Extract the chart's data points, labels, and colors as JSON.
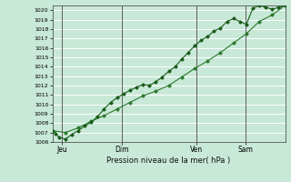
{
  "bg_color": "#c8e8d8",
  "plot_bg_color": "#c8e8d8",
  "grid_color": "#ffffff",
  "line_color1": "#1a5c1a",
  "line_color2": "#2d7a2d",
  "xlabel_text": "Pression niveau de la mer( hPa )",
  "ylim": [
    1006,
    1020.5
  ],
  "yticks": [
    1006,
    1007,
    1008,
    1009,
    1010,
    1011,
    1012,
    1013,
    1014,
    1015,
    1016,
    1017,
    1018,
    1019,
    1020
  ],
  "day_labels": [
    "Jeu",
    "Dim",
    "Ven",
    "Sam"
  ],
  "day_positions": [
    0.04,
    0.3,
    0.62,
    0.83
  ],
  "series1_x": [
    0,
    2,
    4,
    8,
    12,
    16,
    20,
    24,
    28,
    32,
    36,
    40,
    44,
    48,
    52,
    56,
    60,
    64,
    68,
    72,
    76,
    80,
    84,
    88,
    92,
    96,
    100,
    104,
    108,
    112,
    116,
    120,
    124,
    128,
    132,
    136,
    140,
    144
  ],
  "series1_y": [
    1007.2,
    1006.9,
    1006.5,
    1006.3,
    1006.8,
    1007.2,
    1007.7,
    1008.1,
    1008.7,
    1009.5,
    1010.2,
    1010.7,
    1011.1,
    1011.5,
    1011.8,
    1012.1,
    1012.0,
    1012.4,
    1012.9,
    1013.5,
    1014.0,
    1014.8,
    1015.5,
    1016.2,
    1016.8,
    1017.2,
    1017.8,
    1018.1,
    1018.8,
    1019.1,
    1018.8,
    1018.5,
    1020.2,
    1020.5,
    1020.3,
    1020.1,
    1020.3,
    1020.5
  ],
  "series2_x": [
    0,
    8,
    16,
    24,
    32,
    40,
    48,
    56,
    64,
    72,
    80,
    88,
    96,
    104,
    112,
    120,
    128,
    136,
    144
  ],
  "series2_y": [
    1007.2,
    1007.0,
    1007.5,
    1008.2,
    1008.8,
    1009.5,
    1010.2,
    1010.9,
    1011.4,
    1012.0,
    1012.9,
    1013.8,
    1014.6,
    1015.5,
    1016.5,
    1017.5,
    1018.8,
    1019.5,
    1020.5
  ]
}
